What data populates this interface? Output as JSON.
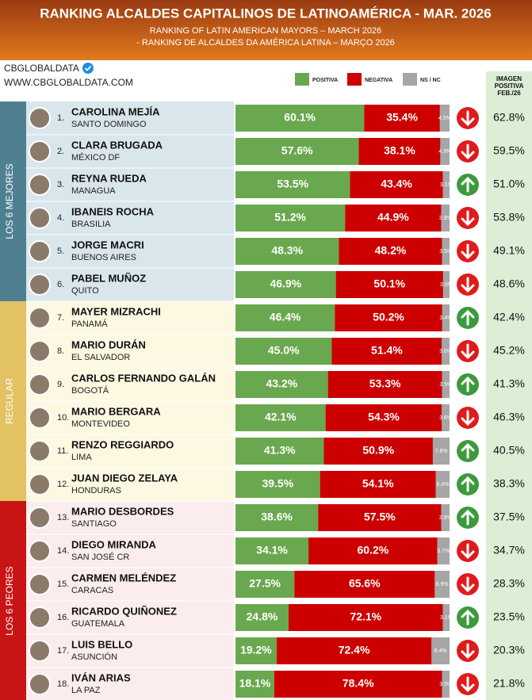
{
  "chart_data": {
    "type": "bar",
    "orientation": "horizontal",
    "stacked": true,
    "title": "RANKING ALCALDES CAPITALINOS DE LATINOAMÉRICA - MAR. 2026",
    "subtitles": [
      "RANKING OF LATIN AMERICAN MAYORS – MARCH 2026",
      "- RANKING DE ALCALDES DA AMÉRICA LATINA – MARÇO 2026"
    ],
    "brand": "CBGLOBALDATA",
    "url": "WWW.CBGLOBALDATA.COM",
    "prev_header": [
      "IMAGEN",
      "POSITIVA",
      "FEB./26"
    ],
    "xlim": [
      0,
      100
    ],
    "ranks": [
      "1.",
      "2.",
      "3.",
      "4.",
      "5.",
      "6.",
      "7.",
      "8.",
      "9.",
      "10.",
      "11.",
      "12.",
      "13.",
      "14.",
      "15.",
      "16.",
      "17.",
      "18."
    ],
    "categories": [
      "CAROLINA MEJÍA",
      "CLARA BRUGADA",
      "REYNA RUEDA",
      "IBANEIS ROCHA",
      "JORGE MACRI",
      "PABEL MUÑOZ",
      "MAYER MIZRACHI",
      "MARIO DURÁN",
      "CARLOS FERNANDO GALÁN",
      "MARIO BERGARA",
      "RENZO REGGIARDO",
      "JUAN DIEGO ZELAYA",
      "MARIO DESBORDES",
      "DIEGO MIRANDA",
      "CARMEN MELÉNDEZ",
      "RICARDO QUIÑONEZ",
      "LUIS BELLO",
      "IVÁN ARIAS"
    ],
    "cities": [
      "SANTO DOMINGO",
      "MÉXICO DF",
      "MANAGUA",
      "BRASILIA",
      "BUENOS AIRES",
      "QUITO",
      "PANAMÁ",
      "EL SALVADOR",
      "BOGOTÁ",
      "MONTEVIDEO",
      "LIMA",
      "HONDURAS",
      "SANTIAGO",
      "SAN JOSÉ CR",
      "CARACAS",
      "GUATEMALA",
      "ASUNCIÓN",
      "LA PAZ"
    ],
    "groups": [
      {
        "label": "LOS 6 MEJORES",
        "start": 0,
        "end": 5,
        "color": "#4f8091",
        "background": "#d9e6ec"
      },
      {
        "label": "REGULAR",
        "start": 6,
        "end": 11,
        "color": "#e2c262",
        "background": "#fdf8e2"
      },
      {
        "label": "LOS 6 PEORES",
        "start": 12,
        "end": 17,
        "color": "#c81414",
        "background": "#fbeced"
      }
    ],
    "series": [
      {
        "name": "POSITIVA",
        "color": "#6aa84f",
        "values": [
          60.1,
          57.6,
          53.5,
          51.2,
          48.3,
          46.9,
          46.4,
          45.0,
          43.2,
          42.1,
          41.3,
          39.5,
          38.6,
          34.1,
          27.5,
          24.8,
          19.2,
          18.1
        ],
        "value_labels": [
          "60.1%",
          "57.6%",
          "53.5%",
          "51.2%",
          "48.3%",
          "46.9%",
          "46.4%",
          "45.0%",
          "43.2%",
          "42.1%",
          "41.3%",
          "39.5%",
          "38.6%",
          "34.1%",
          "27.5%",
          "24.8%",
          "19.2%",
          "18.1%"
        ]
      },
      {
        "name": "NEGATIVA",
        "color": "#cc0000",
        "values": [
          35.4,
          38.1,
          43.4,
          44.9,
          48.2,
          50.1,
          50.2,
          51.4,
          53.3,
          54.3,
          50.9,
          54.1,
          57.5,
          60.2,
          65.6,
          72.1,
          72.4,
          78.4
        ],
        "value_labels": [
          "35.4%",
          "38.1%",
          "43.4%",
          "44.9%",
          "48.2%",
          "50.1%",
          "50.2%",
          "51.4%",
          "53.3%",
          "54.3%",
          "50.9%",
          "54.1%",
          "57.5%",
          "60.2%",
          "65.6%",
          "72.1%",
          "72.4%",
          "78.4%"
        ]
      },
      {
        "name": "NS / NC",
        "color": "#a6a6a6",
        "values": [
          4.5,
          4.3,
          3.1,
          3.9,
          3.5,
          3.0,
          3.4,
          3.6,
          3.5,
          3.6,
          7.8,
          6.4,
          3.9,
          5.7,
          6.9,
          3.1,
          8.4,
          3.5
        ],
        "value_labels": [
          "4.5%",
          "4.3%",
          "3.1%",
          "3.9%",
          "3.5%",
          "3.0%",
          "3.4%",
          "3.6%",
          "3.5%",
          "3.6%",
          "7.8%",
          "6.4%",
          "3.9%",
          "5.7%",
          "6.9%",
          "3.1%",
          "8.4%",
          "3.5%"
        ]
      }
    ],
    "trend": [
      "down",
      "down",
      "up",
      "down",
      "down",
      "down",
      "up",
      "down",
      "up",
      "down",
      "up",
      "up",
      "up",
      "down",
      "down",
      "up",
      "down",
      "down"
    ],
    "trend_colors": {
      "up": "#3c9a3c",
      "down": "#e01b1b"
    },
    "previous": {
      "color": "#dceed6",
      "values": [
        62.8,
        59.5,
        51.0,
        53.8,
        49.1,
        48.6,
        42.4,
        45.2,
        41.3,
        46.3,
        40.5,
        38.3,
        37.5,
        34.7,
        28.3,
        23.5,
        20.3,
        21.8
      ],
      "value_labels": [
        "62.8%",
        "59.5%",
        "51.0%",
        "53.8%",
        "49.1%",
        "48.6%",
        "42.4%",
        "45.2%",
        "41.3%",
        "46.3%",
        "40.5%",
        "38.3%",
        "37.5%",
        "34.7%",
        "28.3%",
        "23.5%",
        "20.3%",
        "21.8%"
      ]
    }
  }
}
